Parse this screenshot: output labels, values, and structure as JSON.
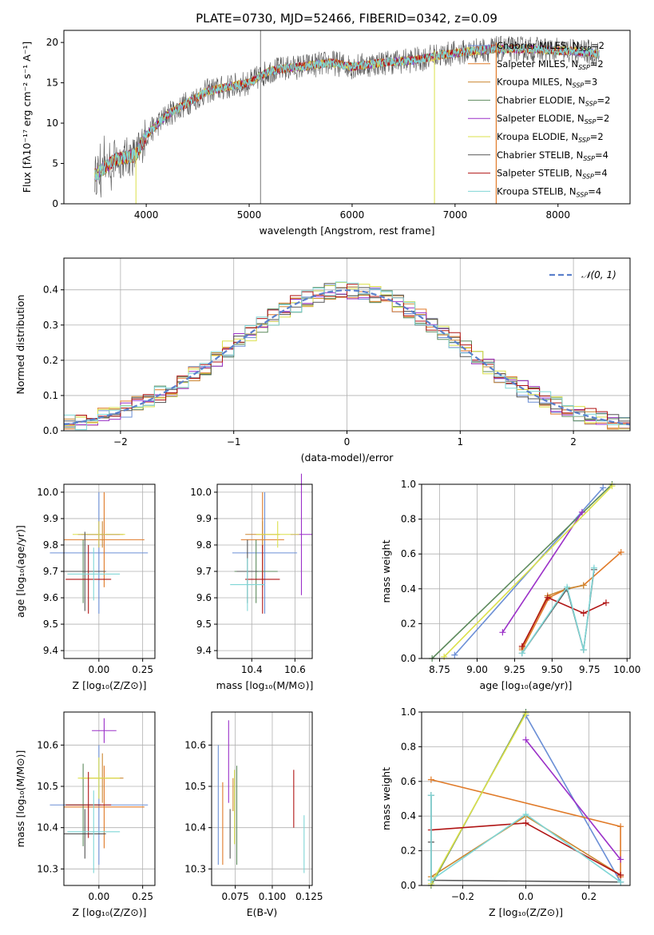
{
  "title": "PLATE=0730, MJD=52466, FIBERID=0342, z=0.09",
  "colors": [
    "#6b8fd6",
    "#e07a28",
    "#cc8833",
    "#5d8a5d",
    "#9b30c8",
    "#dbe04a",
    "#555555",
    "#b01515",
    "#7fd6d6"
  ],
  "chart_data": [
    {
      "id": "spectrum",
      "type": "line",
      "xlabel": "wavelength [Angstrom, rest frame]",
      "ylabel": "Flux [fλ10⁻¹⁷ erg cm⁻² s⁻¹ A⁻¹]",
      "xlim": [
        3200,
        8700
      ],
      "ylim": [
        0,
        21.5
      ],
      "xticks": [
        "4000",
        "5000",
        "6000",
        "7000",
        "8000"
      ],
      "yticks": [
        "0",
        "5",
        "10",
        "15",
        "20"
      ],
      "grid": false,
      "legend_position": "top-right",
      "continuum": {
        "x": [
          3500,
          3700,
          3900,
          4000,
          4200,
          4400,
          4600,
          4800,
          5000,
          5200,
          5500,
          5800,
          6000,
          6300,
          6600,
          6900,
          7200,
          7400,
          7700,
          8000,
          8300,
          8400
        ],
        "y": [
          3.5,
          5.5,
          6.0,
          8.5,
          11.0,
          12.5,
          14.0,
          14.5,
          15.0,
          16.5,
          17.0,
          17.5,
          17.0,
          17.5,
          17.8,
          18.5,
          19.0,
          19.2,
          19.2,
          19.0,
          18.8,
          18.5
        ]
      },
      "series": [
        {
          "name_text": "Chabrier MILES, N",
          "sub": "SSP",
          "suffix": "=2"
        },
        {
          "name_text": "Salpeter MILES, N",
          "sub": "SSP",
          "suffix": "=2"
        },
        {
          "name_text": "Kroupa MILES, N",
          "sub": "SSP",
          "suffix": "=3"
        },
        {
          "name_text": "Chabrier ELODIE, N",
          "sub": "SSP",
          "suffix": "=2"
        },
        {
          "name_text": "Salpeter ELODIE, N",
          "sub": "SSP",
          "suffix": "=2"
        },
        {
          "name_text": "Kroupa ELODIE, N",
          "sub": "SSP",
          "suffix": "=2"
        },
        {
          "name_text": "Chabrier STELIB, N",
          "sub": "SSP",
          "suffix": "=4"
        },
        {
          "name_text": "Salpeter STELIB, N",
          "sub": "SSP",
          "suffix": "=4"
        },
        {
          "name_text": "Kroupa STELIB, N",
          "sub": "SSP",
          "suffix": "=4"
        }
      ]
    },
    {
      "id": "residuals",
      "type": "line",
      "xlabel": "(data-model)/error",
      "ylabel": "Normed distribution",
      "xlim": [
        -2.5,
        2.5
      ],
      "ylim": [
        0,
        0.49
      ],
      "xticks": [
        "−2",
        "−1",
        "0",
        "1",
        "2"
      ],
      "xtick_values": [
        -2,
        -1,
        0,
        1,
        2
      ],
      "yticks": [
        "0.0",
        "0.1",
        "0.2",
        "0.3",
        "0.4"
      ],
      "ytick_values": [
        0,
        0.1,
        0.2,
        0.3,
        0.4
      ],
      "grid": true,
      "legend_position": "top-right",
      "legend": "𝒩(0, 1)",
      "bin_width": 0.1,
      "gaussian": {
        "mean": 0,
        "sigma": 1
      }
    },
    {
      "id": "age-vs-Z",
      "type": "scatter",
      "xlabel": "Z [log₁₀(Z/Z⊙)]",
      "ylabel": "age  [log₁₀(age/yr)]",
      "xlim": [
        -0.2,
        0.32
      ],
      "ylim": [
        9.37,
        10.03
      ],
      "xticks": [
        "0.00",
        "0.25"
      ],
      "xtick_values": [
        0,
        0.25
      ],
      "yticks": [
        "9.4",
        "9.5",
        "9.6",
        "9.7",
        "9.8",
        "9.9",
        "10.0"
      ],
      "ytick_values": [
        9.4,
        9.5,
        9.6,
        9.7,
        9.8,
        9.9,
        10.0
      ],
      "grid": true,
      "points": [
        {
          "x": 0.0,
          "xerr": 0.28,
          "y": 9.77,
          "yerr": 0.23
        },
        {
          "x": 0.03,
          "xerr": 0.23,
          "y": 9.82,
          "yerr": 0.18
        },
        {
          "x": 0.02,
          "xerr": 0.12,
          "y": 9.84,
          "yerr": 0.05
        },
        {
          "x": -0.09,
          "xerr": 0.1,
          "y": 9.7,
          "yerr": 0.12
        },
        {
          "x": 0.0,
          "xerr": 0.12,
          "y": 9.84,
          "yerr": 0.05
        },
        {
          "x": 0.0,
          "xerr": 0.15,
          "y": 9.84,
          "yerr": 0.05
        },
        {
          "x": -0.08,
          "xerr": 0.12,
          "y": 9.7,
          "yerr": 0.15
        },
        {
          "x": -0.06,
          "xerr": 0.13,
          "y": 9.67,
          "yerr": 0.13
        },
        {
          "x": -0.03,
          "xerr": 0.15,
          "y": 9.69,
          "yerr": 0.1
        }
      ]
    },
    {
      "id": "age-vs-mass",
      "type": "scatter",
      "xlabel": "mass [log₁₀(M/M⊙)]",
      "ylabel": "",
      "xlim": [
        10.24,
        10.68
      ],
      "ylim": [
        9.37,
        10.03
      ],
      "xticks": [
        "10.4",
        "10.6"
      ],
      "xtick_values": [
        10.4,
        10.6
      ],
      "yticks": [
        "9.4",
        "9.5",
        "9.6",
        "9.7",
        "9.8",
        "9.9",
        "10.0"
      ],
      "ytick_values": [
        9.4,
        9.5,
        9.6,
        9.7,
        9.8,
        9.9,
        10.0
      ],
      "grid": true,
      "points": [
        {
          "x": 10.46,
          "xerr": 0.15,
          "y": 9.77,
          "yerr": 0.23
        },
        {
          "x": 10.45,
          "xerr": 0.1,
          "y": 9.82,
          "yerr": 0.18
        },
        {
          "x": 10.45,
          "xerr": 0.08,
          "y": 9.84,
          "yerr": 0.05
        },
        {
          "x": 10.42,
          "xerr": 0.1,
          "y": 9.7,
          "yerr": 0.12
        },
        {
          "x": 10.63,
          "xerr": 0.05,
          "y": 9.84,
          "yerr": 0.23
        },
        {
          "x": 10.52,
          "xerr": 0.1,
          "y": 9.84,
          "yerr": 0.05
        },
        {
          "x": 10.38,
          "xerr": 0.05,
          "y": 9.7,
          "yerr": 0.12
        },
        {
          "x": 10.45,
          "xerr": 0.08,
          "y": 9.67,
          "yerr": 0.13
        },
        {
          "x": 10.38,
          "xerr": 0.08,
          "y": 9.65,
          "yerr": 0.1
        }
      ]
    },
    {
      "id": "weights-vs-age",
      "type": "line",
      "xlabel": "age  [log₁₀(age/yr)]",
      "ylabel": "mass weight",
      "xlim": [
        8.63,
        10.02
      ],
      "ylim": [
        0,
        1.0
      ],
      "xticks": [
        "8.75",
        "9.00",
        "9.25",
        "9.50",
        "9.75",
        "10.00"
      ],
      "xtick_values": [
        8.75,
        9.0,
        9.25,
        9.5,
        9.75,
        10.0
      ],
      "yticks": [
        "0.0",
        "0.2",
        "0.4",
        "0.6",
        "0.8",
        "1.0"
      ],
      "ytick_values": [
        0,
        0.2,
        0.4,
        0.6,
        0.8,
        1.0
      ],
      "grid": true,
      "series": [
        {
          "x": [
            8.85,
            9.84
          ],
          "y": [
            0.02,
            0.98
          ]
        },
        {
          "x": [
            9.3,
            9.48,
            9.6,
            9.71,
            9.96
          ],
          "y": [
            0.05,
            0.35,
            0.4,
            0.42,
            0.61
          ]
        },
        {
          "x": [
            9.3,
            9.47,
            9.6,
            9.71
          ],
          "y": [
            0.06,
            0.36,
            0.4,
            0.42
          ]
        },
        {
          "x": [
            8.7,
            9.9
          ],
          "y": [
            0.0,
            1.0
          ]
        },
        {
          "x": [
            9.17,
            9.7
          ],
          "y": [
            0.15,
            0.84
          ]
        },
        {
          "x": [
            8.78,
            9.9
          ],
          "y": [
            0.01,
            0.99
          ]
        },
        {
          "x": [
            9.3,
            9.6,
            9.71,
            9.78
          ],
          "y": [
            0.03,
            0.4,
            0.05,
            0.51
          ]
        },
        {
          "x": [
            9.3,
            9.47,
            9.71,
            9.86
          ],
          "y": [
            0.07,
            0.35,
            0.26,
            0.32
          ]
        },
        {
          "x": [
            9.3,
            9.6,
            9.71,
            9.78
          ],
          "y": [
            0.03,
            0.41,
            0.05,
            0.52
          ]
        }
      ]
    },
    {
      "id": "mass-vs-Z",
      "type": "scatter",
      "xlabel": "Z [log₁₀(Z/Z⊙)]",
      "ylabel": "mass [log₁₀(M/M⊙)]",
      "xlim": [
        -0.2,
        0.32
      ],
      "ylim": [
        10.26,
        10.68
      ],
      "xticks": [
        "0.00",
        "0.25"
      ],
      "xtick_values": [
        0,
        0.25
      ],
      "yticks": [
        "10.3",
        "10.4",
        "10.5",
        "10.6"
      ],
      "ytick_values": [
        10.3,
        10.4,
        10.5,
        10.6
      ],
      "grid": true,
      "points": [
        {
          "x": 0.0,
          "xerr": 0.28,
          "y": 10.455,
          "yerr": 0.145
        },
        {
          "x": 0.03,
          "xerr": 0.23,
          "y": 10.45,
          "yerr": 0.1
        },
        {
          "x": 0.02,
          "xerr": 0.12,
          "y": 10.52,
          "yerr": 0.06
        },
        {
          "x": -0.09,
          "xerr": 0.1,
          "y": 10.455,
          "yerr": 0.1
        },
        {
          "x": 0.03,
          "xerr": 0.07,
          "y": 10.635,
          "yerr": 0.03
        },
        {
          "x": 0.0,
          "xerr": 0.12,
          "y": 10.52,
          "yerr": 0.05
        },
        {
          "x": -0.08,
          "xerr": 0.12,
          "y": 10.385,
          "yerr": 0.06
        },
        {
          "x": -0.06,
          "xerr": 0.13,
          "y": 10.455,
          "yerr": 0.08
        },
        {
          "x": -0.03,
          "xerr": 0.15,
          "y": 10.39,
          "yerr": 0.1
        }
      ]
    },
    {
      "id": "mass-vs-EBV",
      "type": "scatter",
      "xlabel": "E(B-V)",
      "ylabel": "",
      "xlim": [
        0.059,
        0.127
      ],
      "ylim": [
        10.26,
        10.68
      ],
      "xticks": [
        "0.075",
        "0.100",
        "0.125"
      ],
      "xtick_values": [
        0.075,
        0.1,
        0.125
      ],
      "yticks": [
        "10.3",
        "10.4",
        "10.5",
        "10.6"
      ],
      "ytick_values": [
        10.3,
        10.4,
        10.5,
        10.6
      ],
      "grid": true,
      "points": [
        {
          "x": 0.0635,
          "y": 10.455,
          "yerr": 0.145
        },
        {
          "x": 0.0665,
          "y": 10.41,
          "yerr": 0.1
        },
        {
          "x": 0.0735,
          "y": 10.48,
          "yerr": 0.04
        },
        {
          "x": 0.076,
          "y": 10.43,
          "yerr": 0.12
        },
        {
          "x": 0.0705,
          "y": 10.56,
          "yerr": 0.1
        },
        {
          "x": 0.0745,
          "y": 10.45,
          "yerr": 0.09
        },
        {
          "x": 0.0715,
          "y": 10.385,
          "yerr": 0.06
        },
        {
          "x": 0.1145,
          "y": 10.47,
          "yerr": 0.07
        },
        {
          "x": 0.1215,
          "y": 10.36,
          "yerr": 0.07
        }
      ]
    },
    {
      "id": "weights-vs-Z",
      "type": "line",
      "xlabel": "Z [log₁₀(Z/Z⊙)]",
      "ylabel": "mass weight",
      "xlim": [
        -0.33,
        0.33
      ],
      "ylim": [
        0,
        1.0
      ],
      "xticks": [
        "−0.2",
        "0.0",
        "0.2"
      ],
      "xtick_values": [
        -0.2,
        0,
        0.2
      ],
      "yticks": [
        "0.0",
        "0.2",
        "0.4",
        "0.6",
        "0.8",
        "1.0"
      ],
      "ytick_values": [
        0,
        0.2,
        0.4,
        0.6,
        0.8,
        1.0
      ],
      "grid": true,
      "series": [
        {
          "x": [
            0.0,
            0.3
          ],
          "y": [
            0.98,
            0.02
          ]
        },
        {
          "x": [
            -0.3,
            0.3,
            0.3
          ],
          "y": [
            0.61,
            0.34,
            0.05
          ]
        },
        {
          "x": [
            -0.3,
            0.0,
            0.3
          ],
          "y": [
            0.05,
            0.4,
            0.06
          ]
        },
        {
          "x": [
            -0.3,
            0.0
          ],
          "y": [
            0.0,
            1.0
          ]
        },
        {
          "x": [
            0.0,
            0.3
          ],
          "y": [
            0.84,
            0.15
          ]
        },
        {
          "x": [
            -0.3,
            0.0
          ],
          "y": [
            0.01,
            0.99
          ]
        },
        {
          "x": [
            -0.3,
            -0.3,
            -0.3,
            0.3
          ],
          "y": [
            0.52,
            0.25,
            0.03,
            0.02
          ]
        },
        {
          "x": [
            -0.3,
            0.0,
            0.3
          ],
          "y": [
            0.32,
            0.36,
            0.06
          ]
        },
        {
          "x": [
            -0.3,
            -0.3,
            0.0,
            0.3
          ],
          "y": [
            0.52,
            0.03,
            0.41,
            0.02
          ]
        }
      ]
    }
  ]
}
